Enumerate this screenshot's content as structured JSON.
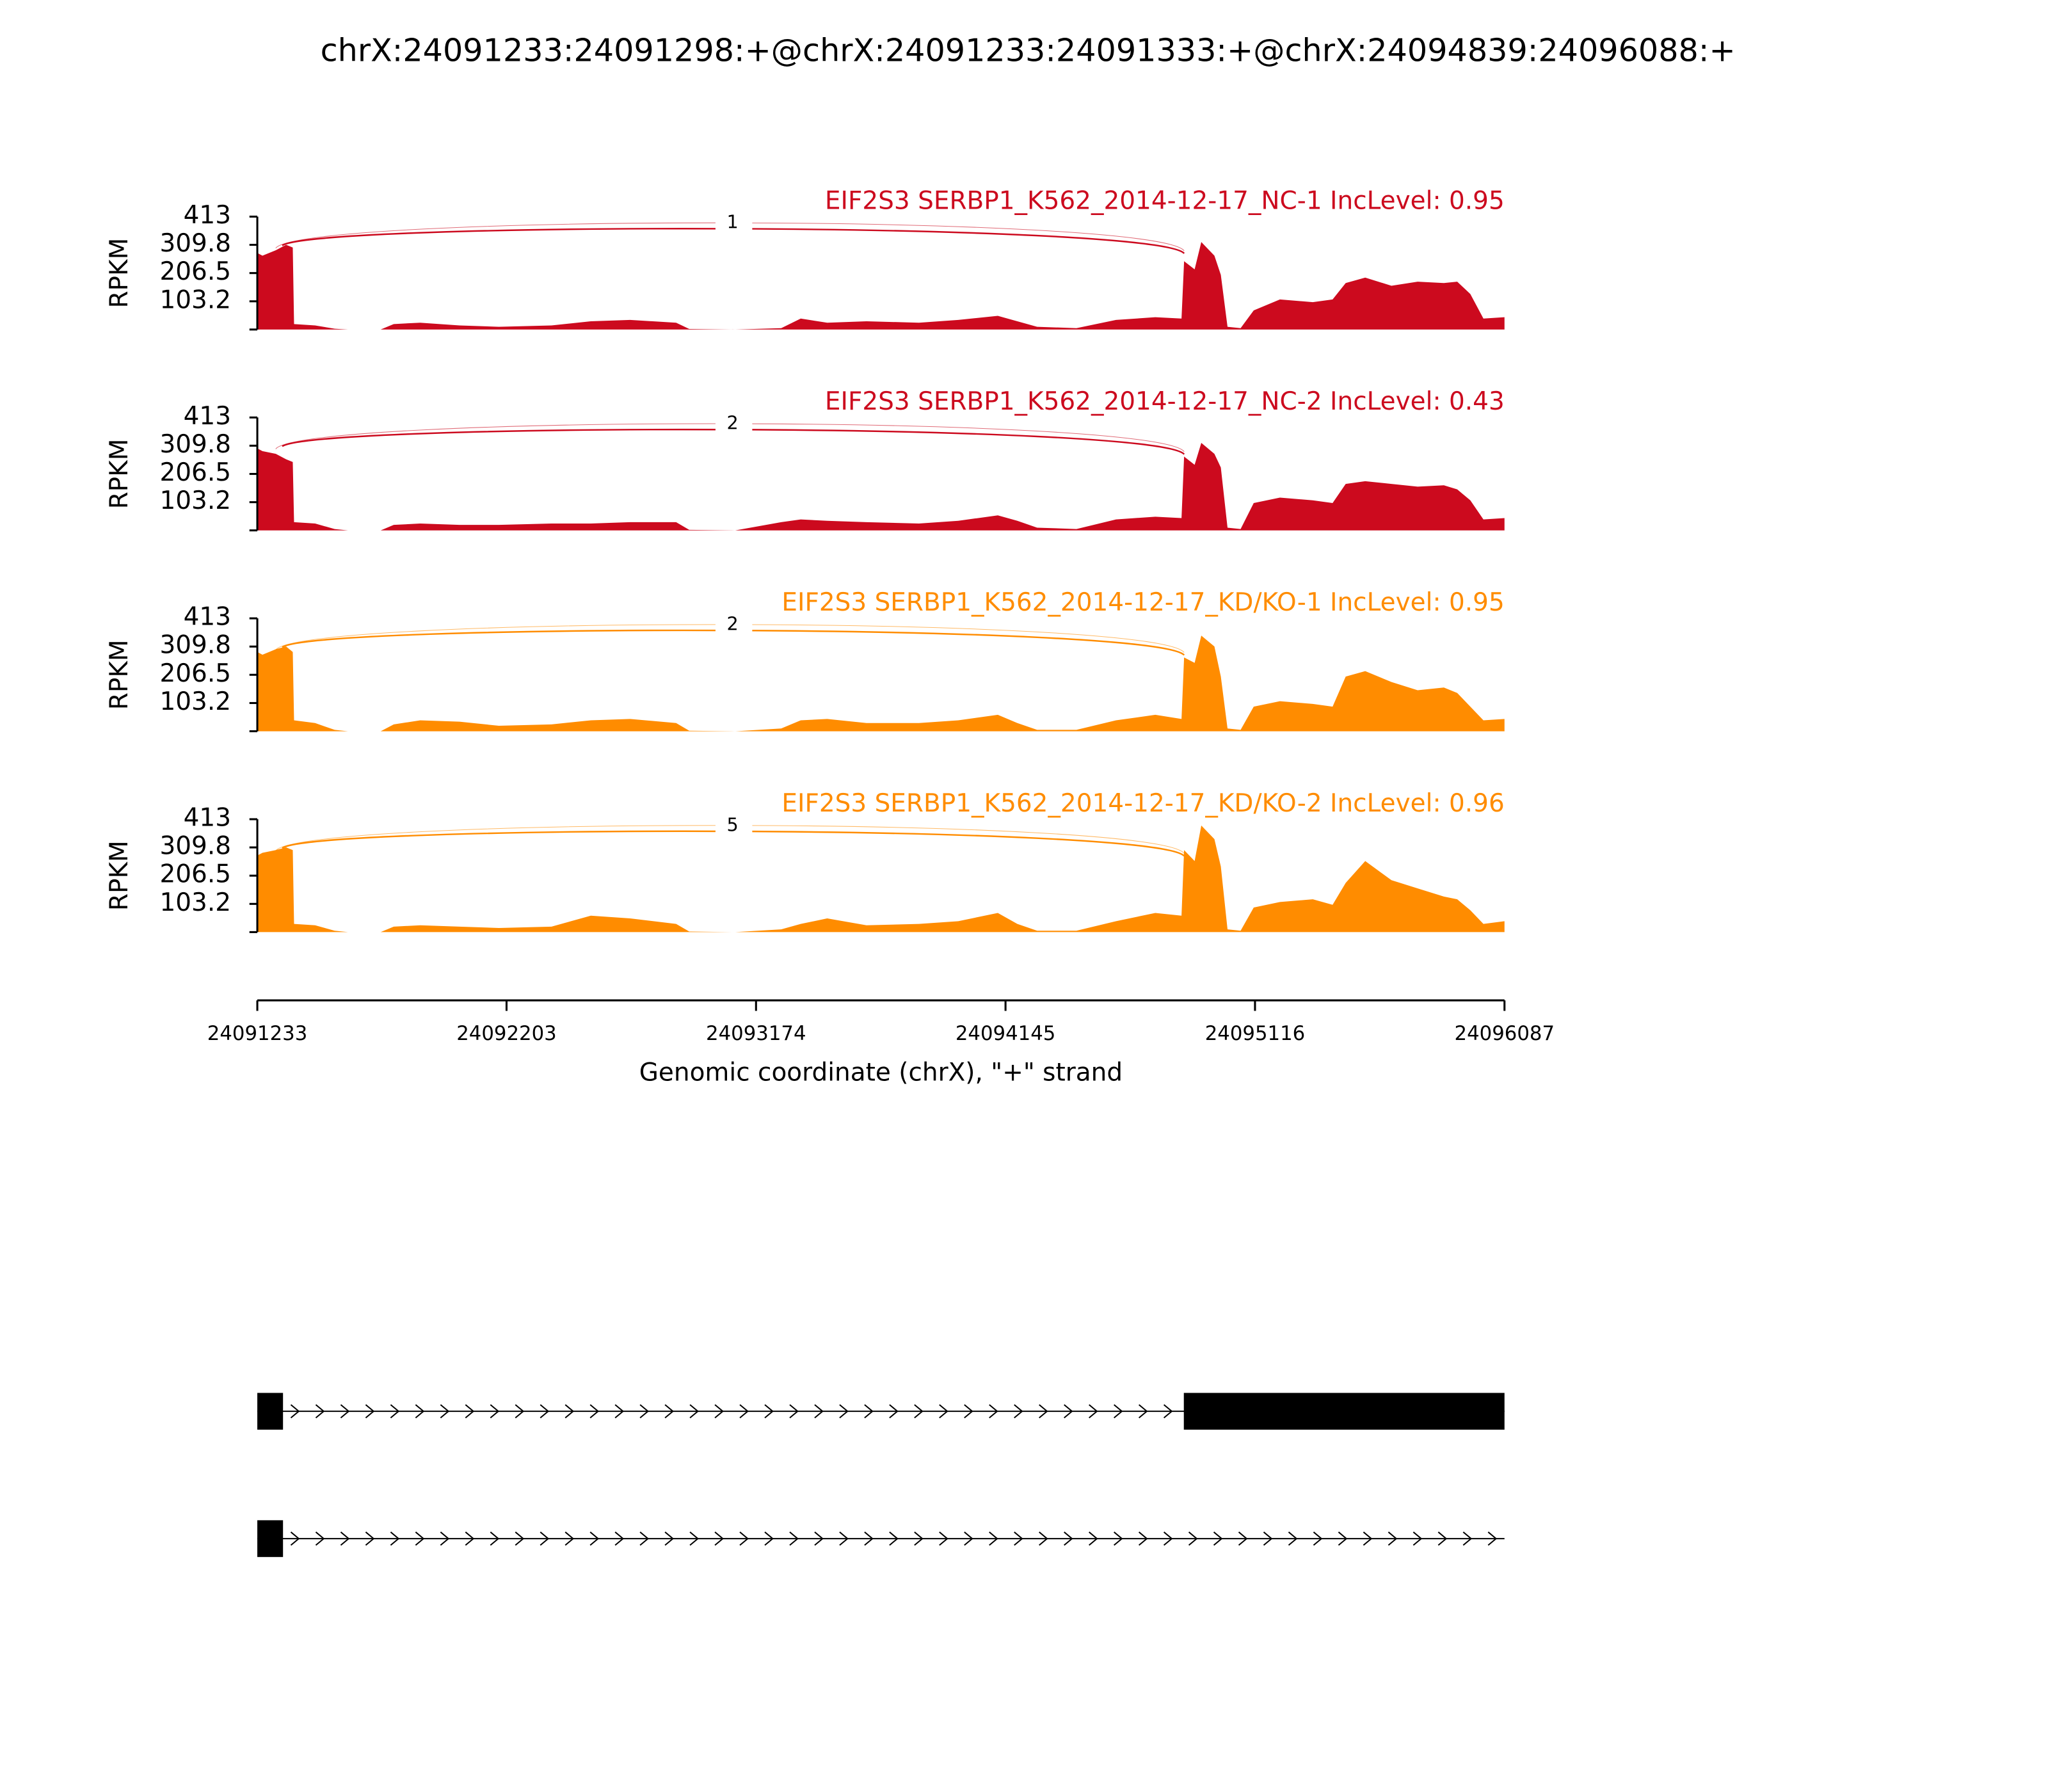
{
  "title": "chrX:24091233:24091298:+@chrX:24091233:24091333:+@chrX:24094839:24096088:+",
  "chart_data": [
    {
      "type": "area",
      "title": "EIF2S3 SERBP1_K562_2014-12-17_NC-1 IncLevel: 0.95",
      "color": "#cc0a1e",
      "junction_count": "1",
      "ylabel": "RPKM",
      "ylim": [
        0,
        413
      ],
      "yticks": [
        103.2,
        206.5,
        309.8,
        413
      ],
      "x": [
        24091233,
        24091253,
        24091305,
        24091345,
        24091371,
        24091376,
        24091458,
        24091534,
        24091586,
        24091713,
        24091764,
        24091867,
        24092020,
        24092173,
        24092378,
        24092531,
        24092684,
        24092863,
        24092914,
        24093093,
        24093272,
        24093348,
        24093451,
        24093604,
        24093808,
        24093961,
        24094115,
        24094191,
        24094268,
        24094421,
        24094575,
        24094728,
        24094830,
        24094840,
        24094881,
        24094907,
        24094958,
        24094983,
        24095009,
        24095060,
        24095111,
        24095213,
        24095341,
        24095418,
        24095469,
        24095545,
        24095647,
        24095749,
        24095851,
        24095903,
        24095954,
        24096005,
        24096087
      ],
      "values": [
        280,
        270,
        290,
        310,
        300,
        20,
        15,
        3,
        0,
        0,
        20,
        25,
        15,
        10,
        15,
        30,
        35,
        25,
        2,
        0,
        5,
        40,
        25,
        30,
        25,
        35,
        50,
        30,
        10,
        5,
        35,
        45,
        40,
        250,
        220,
        320,
        270,
        200,
        10,
        5,
        70,
        110,
        100,
        110,
        170,
        190,
        160,
        175,
        170,
        175,
        130,
        40,
        45
      ]
    },
    {
      "type": "area",
      "title": "EIF2S3 SERBP1_K562_2014-12-17_NC-2 IncLevel: 0.43",
      "color": "#cc0a1e",
      "junction_count": "2",
      "ylabel": "RPKM",
      "ylim": [
        0,
        413
      ],
      "yticks": [
        103.2,
        206.5,
        309.8,
        413
      ],
      "x": [
        24091233,
        24091253,
        24091305,
        24091345,
        24091371,
        24091376,
        24091458,
        24091534,
        24091586,
        24091713,
        24091764,
        24091867,
        24092020,
        24092173,
        24092378,
        24092531,
        24092684,
        24092863,
        24092914,
        24093093,
        24093272,
        24093348,
        24093451,
        24093604,
        24093808,
        24093961,
        24094115,
        24094191,
        24094268,
        24094421,
        24094575,
        24094728,
        24094830,
        24094840,
        24094881,
        24094907,
        24094958,
        24094983,
        24095009,
        24095060,
        24095111,
        24095213,
        24095341,
        24095418,
        24095469,
        24095545,
        24095647,
        24095749,
        24095851,
        24095903,
        24095954,
        24096005,
        24096087
      ],
      "values": [
        300,
        290,
        280,
        260,
        250,
        30,
        25,
        5,
        0,
        0,
        20,
        25,
        20,
        20,
        25,
        25,
        30,
        30,
        2,
        0,
        30,
        40,
        35,
        30,
        25,
        35,
        55,
        35,
        10,
        5,
        40,
        50,
        45,
        270,
        240,
        320,
        280,
        230,
        10,
        5,
        100,
        120,
        110,
        100,
        170,
        180,
        170,
        160,
        165,
        150,
        110,
        40,
        45
      ]
    },
    {
      "type": "area",
      "title": "EIF2S3 SERBP1_K562_2014-12-17_KD/KO-1 IncLevel: 0.95",
      "color": "#ff8c00",
      "junction_count": "2",
      "ylabel": "RPKM",
      "ylim": [
        0,
        413
      ],
      "yticks": [
        103.2,
        206.5,
        309.8,
        413
      ],
      "x": [
        24091233,
        24091253,
        24091305,
        24091345,
        24091371,
        24091376,
        24091458,
        24091534,
        24091586,
        24091713,
        24091764,
        24091867,
        24092020,
        24092173,
        24092378,
        24092531,
        24092684,
        24092863,
        24092914,
        24093093,
        24093272,
        24093348,
        24093451,
        24093604,
        24093808,
        24093961,
        24094115,
        24094191,
        24094268,
        24094421,
        24094575,
        24094728,
        24094830,
        24094840,
        24094881,
        24094907,
        24094958,
        24094983,
        24095009,
        24095060,
        24095111,
        24095213,
        24095341,
        24095418,
        24095469,
        24095545,
        24095647,
        24095749,
        24095851,
        24095903,
        24095954,
        24096005,
        24096087
      ],
      "values": [
        290,
        280,
        300,
        310,
        290,
        40,
        30,
        5,
        0,
        0,
        25,
        40,
        35,
        20,
        25,
        40,
        45,
        30,
        2,
        0,
        10,
        40,
        45,
        30,
        30,
        40,
        60,
        30,
        5,
        5,
        40,
        60,
        45,
        270,
        250,
        350,
        310,
        200,
        10,
        5,
        90,
        110,
        100,
        90,
        200,
        220,
        180,
        150,
        160,
        140,
        90,
        40,
        45
      ]
    },
    {
      "type": "area",
      "title": "EIF2S3 SERBP1_K562_2014-12-17_KD/KO-2 IncLevel: 0.96",
      "color": "#ff8c00",
      "junction_count": "5",
      "ylabel": "RPKM",
      "ylim": [
        0,
        413
      ],
      "yticks": [
        103.2,
        206.5,
        309.8,
        413
      ],
      "x": [
        24091233,
        24091253,
        24091305,
        24091345,
        24091371,
        24091376,
        24091458,
        24091534,
        24091586,
        24091713,
        24091764,
        24091867,
        24092020,
        24092173,
        24092378,
        24092531,
        24092684,
        24092863,
        24092914,
        24093093,
        24093272,
        24093348,
        24093451,
        24093604,
        24093808,
        24093961,
        24094115,
        24094191,
        24094268,
        24094421,
        24094575,
        24094728,
        24094830,
        24094840,
        24094881,
        24094907,
        24094958,
        24094983,
        24095009,
        24095060,
        24095111,
        24095213,
        24095341,
        24095418,
        24095469,
        24095545,
        24095647,
        24095749,
        24095851,
        24095903,
        24095954,
        24096005,
        24096087
      ],
      "values": [
        280,
        290,
        300,
        310,
        300,
        30,
        25,
        5,
        0,
        0,
        20,
        25,
        20,
        15,
        20,
        60,
        50,
        30,
        2,
        0,
        10,
        30,
        50,
        25,
        30,
        40,
        70,
        30,
        5,
        5,
        40,
        70,
        60,
        300,
        260,
        390,
        340,
        240,
        10,
        5,
        90,
        110,
        120,
        100,
        180,
        260,
        190,
        160,
        130,
        120,
        80,
        30,
        40
      ]
    }
  ],
  "x_axis": {
    "xlim": [
      24091233,
      24096087
    ],
    "xticks": [
      24091233,
      24092203,
      24093174,
      24094145,
      24095116,
      24096087
    ],
    "xlabel": "Genomic coordinate (chrX), \"+\" strand"
  },
  "transcripts": [
    {
      "start": 24091233,
      "end": 24096088,
      "exons": [
        [
          24091233,
          24091333
        ],
        [
          24094839,
          24096088
        ]
      ]
    },
    {
      "start": 24091233,
      "end": 24096088,
      "exons": [
        [
          24091233,
          24091333
        ]
      ]
    }
  ]
}
